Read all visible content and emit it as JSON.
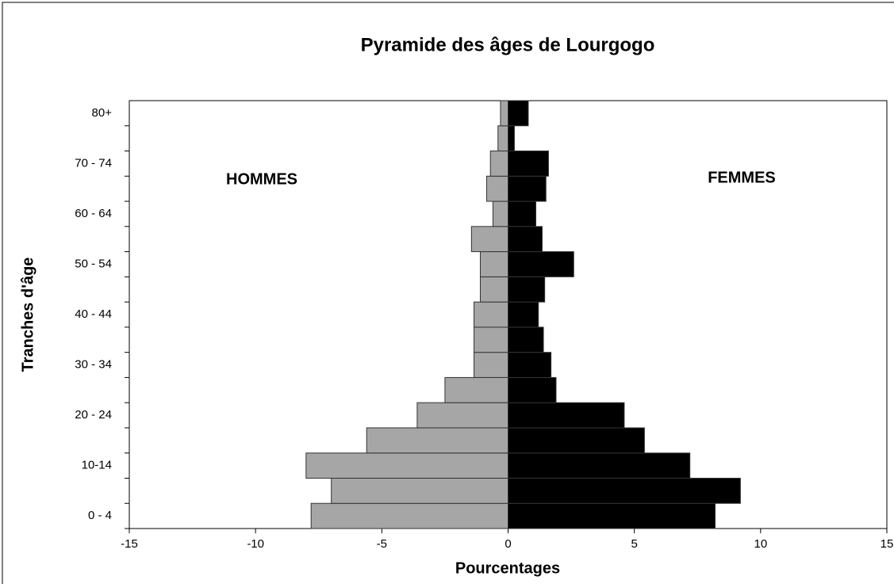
{
  "chart_data": {
    "type": "pyramid",
    "title": "Pyramide des âges de Lourgogo",
    "x_label": "Pourcentages",
    "y_label": "Tranches d'âge",
    "categories": [
      "0 - 4",
      null,
      "10-14",
      null,
      "20 - 24",
      null,
      "30 - 34",
      null,
      "40 - 44",
      null,
      "50 - 54",
      null,
      "60 - 64",
      null,
      "70 - 74",
      null,
      "80+"
    ],
    "series": [
      {
        "name": "HOMMES",
        "color": "#a6a6a6",
        "values": [
          -7.8,
          -7.0,
          -8.0,
          -5.6,
          -3.6,
          -2.5,
          -1.35,
          -1.35,
          -1.35,
          -1.1,
          -1.1,
          -1.45,
          -0.6,
          -0.85,
          -0.7,
          -0.4,
          -0.3
        ]
      },
      {
        "name": "FEMMES",
        "color": "#000000",
        "values": [
          8.2,
          9.2,
          7.2,
          5.4,
          4.6,
          1.9,
          1.7,
          1.4,
          1.2,
          1.45,
          2.6,
          1.35,
          1.1,
          1.5,
          1.6,
          0.25,
          0.8
        ]
      }
    ],
    "xlim": [
      -15,
      15
    ],
    "xticks": [
      -15,
      -10,
      -5,
      0,
      5,
      10,
      15
    ]
  }
}
